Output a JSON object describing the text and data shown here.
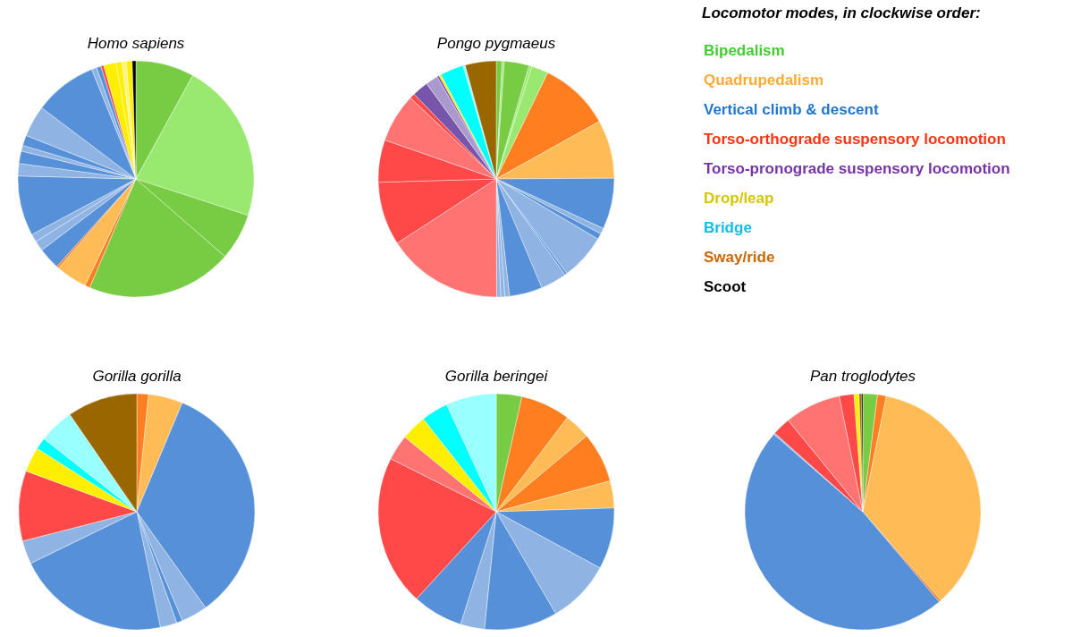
{
  "chart_data": [
    {
      "type": "pie",
      "title": "Homo sapiens",
      "categories": [
        null,
        null,
        null,
        null,
        null,
        null,
        null,
        null,
        null,
        null,
        null,
        null,
        null,
        null,
        null,
        null,
        null,
        null,
        null,
        null,
        null,
        null,
        null,
        null,
        null
      ],
      "values": [
        8,
        22,
        6.4,
        20,
        0.7,
        4.3,
        0.3,
        3,
        1.4,
        1.1,
        8.2,
        1.7,
        1.7,
        0.8,
        1.4,
        4.3,
        8.6,
        0.7,
        0.6,
        0.4,
        1.7,
        0.8,
        0.6,
        0.8,
        0.5
      ],
      "colors": [
        "#77cc44",
        "#99e870",
        "#77cc44",
        "#77cc44",
        "#ff7f20",
        "#ffbb55",
        "#ff7f20",
        "#5590d8",
        "#8fb4e3",
        "#8fb4e3",
        "#5590d8",
        "#8fb4e3",
        "#5590d8",
        "#8fb4e3",
        "#5590d8",
        "#8fb4e3",
        "#5590d8",
        "#8fb4e3",
        "#5590d8",
        "#ff4848",
        "#ffee00",
        "#ffee00",
        "#fff380",
        "#ffee00",
        "#000000"
      ]
    },
    {
      "type": "pie",
      "title": "Pongo pygmaeus",
      "categories": [
        null,
        null,
        null,
        null,
        null,
        null,
        null,
        null,
        null,
        null,
        null,
        null,
        null,
        null,
        null,
        null,
        null,
        null,
        null,
        null,
        null,
        null,
        null,
        null,
        null,
        null,
        null,
        null,
        null
      ],
      "values": [
        0.8,
        0.3,
        3.4,
        0.4,
        2.3,
        9.7,
        8,
        7,
        0.8,
        0.8,
        6.3,
        0.3,
        3.6,
        4.5,
        0.65,
        0.55,
        0.55,
        15.9,
        8.7,
        5.8,
        6.7,
        0.7,
        2.2,
        1.7,
        0.3,
        0.3,
        3.2,
        0.3,
        4.25
      ],
      "colors": [
        "#77cc44",
        "#99e870",
        "#77cc44",
        "#99e870",
        "#99e870",
        "#ff7f20",
        "#ffbb55",
        "#5590d8",
        "#8fb4e3",
        "#5590d8",
        "#8fb4e3",
        "#5590d8",
        "#8fb4e3",
        "#5590d8",
        "#8fb4e3",
        "#8fb4e3",
        "#8fb4e3",
        "#ff7373",
        "#ff4848",
        "#ff4848",
        "#ff7373",
        "#ff4848",
        "#7755aa",
        "#aa99cc",
        "#7755aa",
        "#ffee00",
        "#00ffff",
        "#99ffff",
        "#996600"
      ]
    },
    {
      "type": "other",
      "title": "Locomotor modes, in clockwise order:",
      "annotations": [
        "Bipedalism",
        "Quadrupedalism",
        "Vertical climb & descent",
        "Torso-orthograde suspensory locomotion",
        "Torso-pronograde suspensory locomotion",
        "Drop/leap",
        "Bridge",
        "Sway/ride",
        "Scoot"
      ],
      "colors": [
        "#44cc33",
        "#ffaa33",
        "#2277cc",
        "#ff3311",
        "#7733aa",
        "#d6c600",
        "#11bbee",
        "#cc6600",
        "#000000"
      ]
    },
    {
      "type": "pie",
      "title": "Gorilla gorilla",
      "categories": [
        null,
        null,
        null,
        null,
        null,
        null,
        null,
        null,
        null,
        null,
        null,
        null,
        null
      ],
      "values": [
        1.6,
        4.7,
        33.8,
        3.6,
        0.8,
        2.3,
        21,
        3.2,
        9.6,
        3.4,
        1.6,
        4.8,
        9.6
      ],
      "colors": [
        "#ff7f20",
        "#ffbb55",
        "#5590d8",
        "#8fb4e3",
        "#5590d8",
        "#8fb4e3",
        "#5590d8",
        "#8fb4e3",
        "#ff4848",
        "#ffee00",
        "#00ffff",
        "#99ffff",
        "#996600"
      ]
    },
    {
      "type": "pie",
      "title": "Gorilla beringei",
      "categories": [
        null,
        null,
        null,
        null,
        null,
        null,
        null,
        null,
        null,
        null,
        null,
        null,
        null,
        null,
        null
      ],
      "values": [
        3.5,
        6.8,
        3.6,
        6.9,
        3.7,
        8.4,
        8.7,
        10,
        3.3,
        6.9,
        20.6,
        3.5,
        3.5,
        3.7,
        6.9
      ],
      "colors": [
        "#77cc44",
        "#ff7f20",
        "#ffbb55",
        "#ff7f20",
        "#ffbb55",
        "#5590d8",
        "#8fb4e3",
        "#5590d8",
        "#8fb4e3",
        "#5590d8",
        "#ff4848",
        "#ff7373",
        "#ffee00",
        "#00ffff",
        "#99ffff"
      ]
    },
    {
      "type": "pie",
      "title": "Pan troglodytes",
      "categories": [
        null,
        null,
        null,
        null,
        null,
        null,
        null,
        null,
        null,
        null,
        null,
        null
      ],
      "values": [
        2,
        1.2,
        35.3,
        0.3,
        47.6,
        0.2,
        2.5,
        7.7,
        2,
        0.7,
        0.3,
        0.2
      ],
      "colors": [
        "#77cc44",
        "#ff7f20",
        "#ffbb55",
        "#ff7f20",
        "#5590d8",
        "#8fb4e3",
        "#ff4848",
        "#ff7373",
        "#ff4848",
        "#ffee00",
        "#996600",
        "#000000"
      ]
    }
  ]
}
